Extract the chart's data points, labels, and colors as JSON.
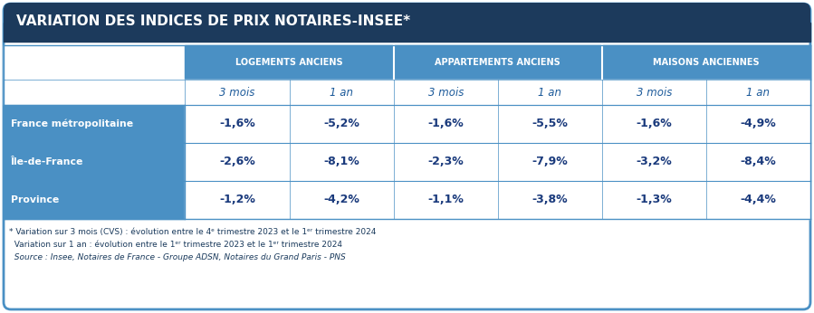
{
  "title": "VARIATION DES INDICES DE PRIX NOTAIRES-INSEE*",
  "title_bg": "#1c3a5c",
  "title_color": "#ffffff",
  "header_bg": "#4a90c4",
  "header_color": "#ffffff",
  "subheader_color": "#1c5a9a",
  "row_label_bg": "#4a90c4",
  "row_label_color": "#ffffff",
  "cell_color": "#1a3a7c",
  "border_color": "#4a90c4",
  "outer_bg": "#ffffff",
  "outer_border": "#4a90c4",
  "col_groups": [
    "LOGEMENTS ANCIENS",
    "APPARTEMENTS ANCIENS",
    "MAISONS ANCIENNES"
  ],
  "col_subheaders": [
    "3 mois",
    "1 an",
    "3 mois",
    "1 an",
    "3 mois",
    "1 an"
  ],
  "rows": [
    {
      "label": "France métropolitaine",
      "values": [
        "-1,6%",
        "-5,2%",
        "-1,6%",
        "-5,5%",
        "-1,6%",
        "-4,9%"
      ]
    },
    {
      "label": "Île-de-France",
      "values": [
        "-2,6%",
        "-8,1%",
        "-2,3%",
        "-7,9%",
        "-3,2%",
        "-8,4%"
      ]
    },
    {
      "label": "Province",
      "values": [
        "-1,2%",
        "-4,2%",
        "-1,1%",
        "-3,8%",
        "-1,3%",
        "-4,4%"
      ]
    }
  ],
  "footnote1": "* Variation sur 3 mois (CVS) : évolution entre le 4ᵉ trimestre 2023 et le 1ᵉʳ trimestre 2024",
  "footnote2": "  Variation sur 1 an : évolution entre le 1ᵉʳ trimestre 2023 et le 1ᵉʳ trimestre 2024",
  "footnote3": "  Source : Insee, Notaires de France - Groupe ADSN, Notaires du Grand Paris - PNS"
}
